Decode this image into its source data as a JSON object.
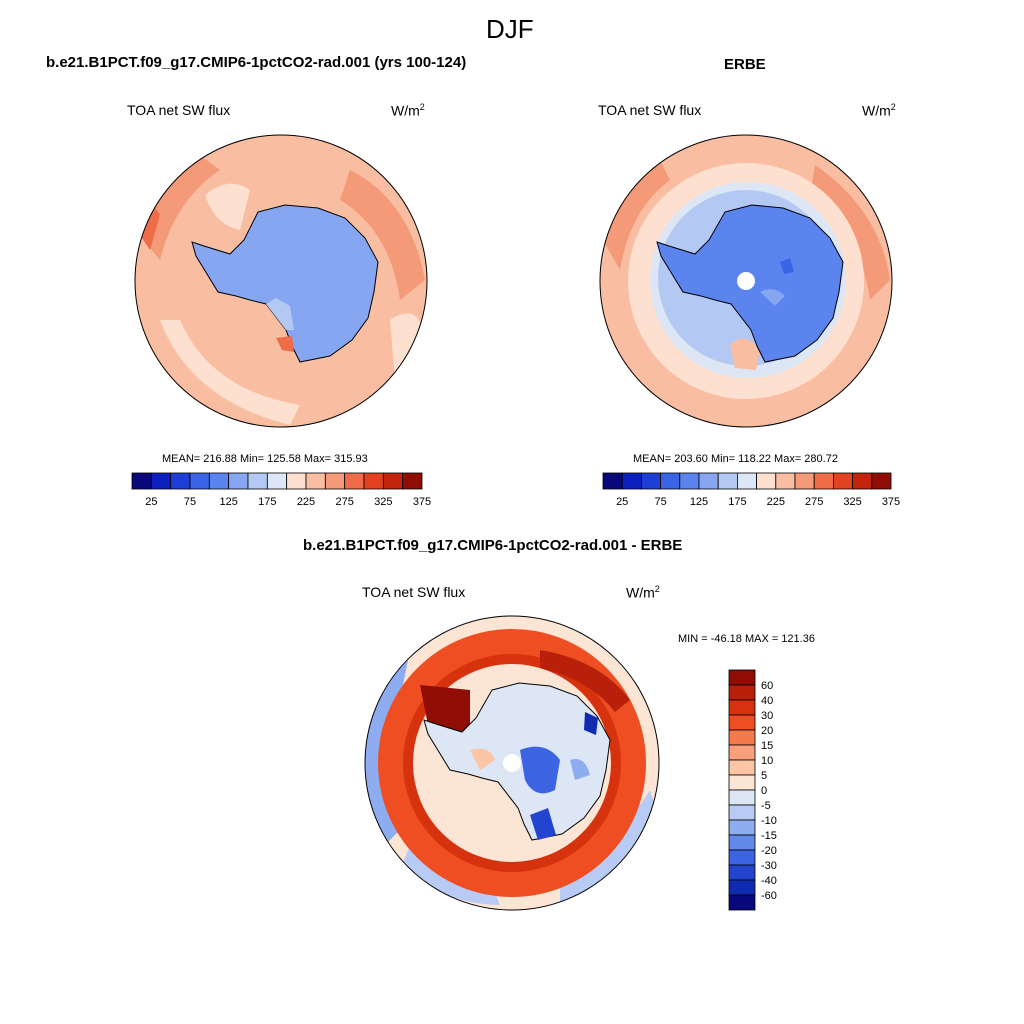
{
  "title": "DJF",
  "panels": [
    {
      "case": "b.e21.B1PCT.f09_g17.CMIP6-1pctCO2-rad.001 (yrs 100-124)",
      "variable": "TOA net SW flux",
      "units": "W/m",
      "units_sup": "2",
      "stats": "MEAN= 216.88  Min= 125.58  Max= 315.93"
    },
    {
      "case": "ERBE",
      "variable": "TOA net SW flux",
      "units": "W/m",
      "units_sup": "2",
      "stats": "MEAN= 203.60  Min= 118.22  Max= 280.72"
    },
    {
      "case": "b.e21.B1PCT.f09_g17.CMIP6-1pctCO2-rad.001 - ERBE",
      "variable": "TOA net SW flux",
      "units": "W/m",
      "units_sup": "2",
      "stats": "MIN = -46.18 MAX = 121.36"
    }
  ],
  "colorbar_abs": {
    "colors": [
      "#08087a",
      "#0c1fbf",
      "#1e3fd6",
      "#3a64e6",
      "#5b84ee",
      "#86a6f2",
      "#b4c8f4",
      "#dde6f5",
      "#fde0cf",
      "#f9bea2",
      "#f59a78",
      "#ee6d48",
      "#e2421f",
      "#c2240c",
      "#8f0d05"
    ],
    "labels": [
      "25",
      "75",
      "125",
      "175",
      "225",
      "275",
      "325",
      "375"
    ]
  },
  "colorbar_diff": {
    "colors": [
      "#8f0d05",
      "#b8200c",
      "#d7320e",
      "#ee4e22",
      "#f47a4e",
      "#f8a07c",
      "#fbc5a6",
      "#fde5d5",
      "#dde6f5",
      "#b8cbf4",
      "#8eacf0",
      "#6288ea",
      "#3c63e2",
      "#2244cf",
      "#112bb0",
      "#08087a"
    ],
    "labels": [
      "60",
      "40",
      "30",
      "20",
      "15",
      "10",
      "5",
      "0",
      "-5",
      "-10",
      "-15",
      "-20",
      "-30",
      "-40",
      "-60"
    ]
  }
}
